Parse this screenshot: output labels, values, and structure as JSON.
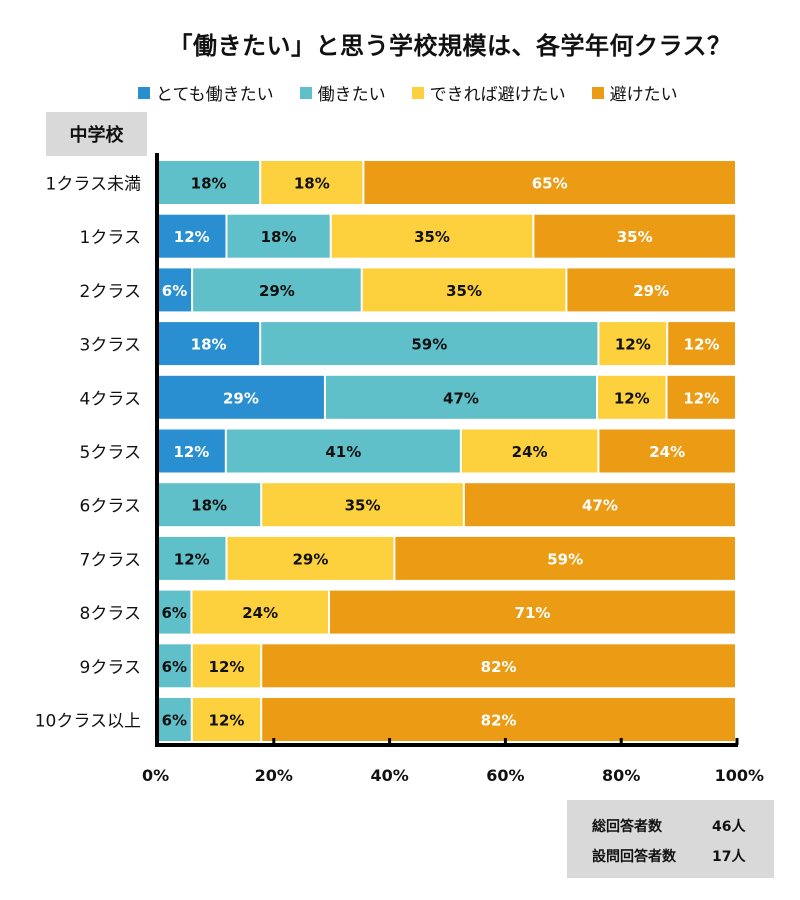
{
  "chart_data": {
    "type": "bar",
    "orientation": "horizontal",
    "stacked": true,
    "title": "「働きたい」と思う学校規模は、各学年何クラス？",
    "group_label": "中学校",
    "categories": [
      "1クラス未満",
      "1クラス",
      "2クラス",
      "3クラス",
      "4クラス",
      "5クラス",
      "6クラス",
      "7クラス",
      "8クラス",
      "9クラス",
      "10クラス以上"
    ],
    "series": [
      {
        "name": "とても働きたい",
        "color": "#2a8fd0",
        "label_color": "#ffffff",
        "values": [
          0,
          12,
          6,
          18,
          29,
          12,
          0,
          0,
          0,
          0,
          0
        ]
      },
      {
        "name": "働きたい",
        "color": "#5fc0c9",
        "label_color": "#111111",
        "values": [
          18,
          18,
          29,
          59,
          47,
          41,
          18,
          12,
          6,
          6,
          6
        ]
      },
      {
        "name": "できれば避けたい",
        "color": "#fdd13d",
        "label_color": "#111111",
        "values": [
          18,
          35,
          35,
          12,
          12,
          24,
          35,
          29,
          24,
          12,
          12
        ]
      },
      {
        "name": "避けたい",
        "color": "#eb9c14",
        "label_color": "#ffffff",
        "values": [
          65,
          35,
          29,
          12,
          12,
          24,
          47,
          59,
          71,
          82,
          82
        ]
      }
    ],
    "xlim": [
      0,
      100
    ],
    "xticks": [
      0,
      20,
      40,
      60,
      80,
      100
    ],
    "xtick_labels": [
      "0%",
      "20%",
      "40%",
      "60%",
      "80%",
      "100%"
    ],
    "xlabel": "",
    "ylabel": "",
    "legend_position": "top",
    "grid": false
  },
  "summary": {
    "rows": [
      {
        "label": "総回答者数",
        "value": "46人"
      },
      {
        "label": "設問回答者数",
        "value": "17人"
      }
    ]
  }
}
